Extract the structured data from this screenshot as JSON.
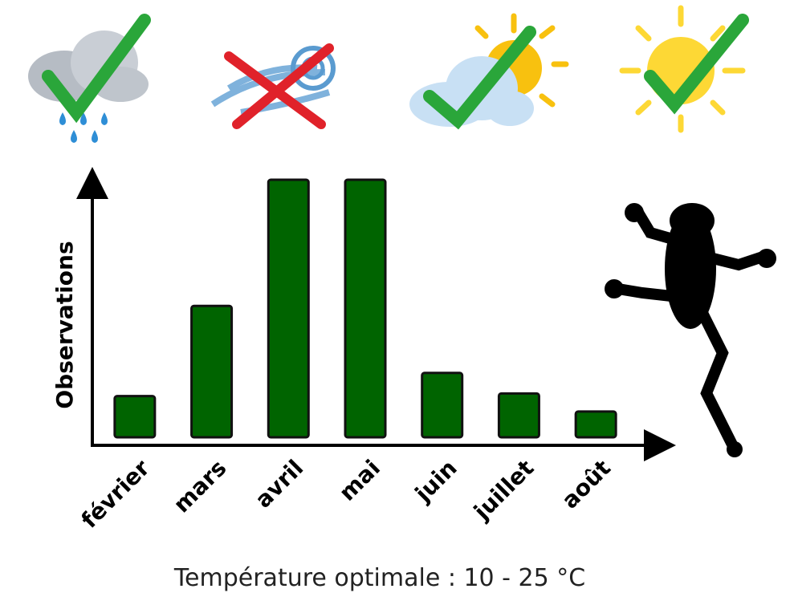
{
  "chart_data": {
    "type": "bar",
    "y_label": "Observations",
    "categories": [
      "février",
      "mars",
      "avril",
      "mai",
      "juin",
      "juillet",
      "août"
    ],
    "values": [
      16,
      51,
      100,
      100,
      25,
      17,
      10
    ],
    "color": "#006400",
    "ylim": [
      0,
      100
    ]
  },
  "footer": "Température optimale :  10 - 25 °C"
}
